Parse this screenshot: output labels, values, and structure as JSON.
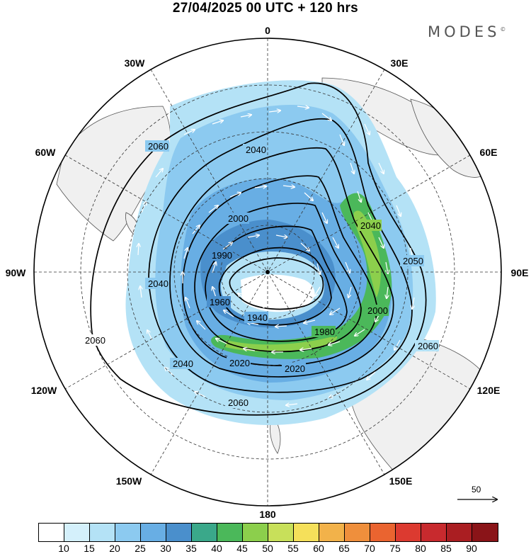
{
  "title": "27/04/2025  00 UTC  + 120 hrs",
  "brand": "MODES",
  "brand_mark": "©",
  "longitude_labels": {
    "n0": "0",
    "n30e": "30E",
    "n60e": "60E",
    "n90e": "90E",
    "n120e": "120E",
    "n150e": "150E",
    "n180": "180",
    "n150w": "150W",
    "n120w": "120W",
    "n90w": "90W",
    "n60w": "60W",
    "n30w": "30W"
  },
  "contour_labels": {
    "c2060_nw": "2060",
    "c2040_n": "2040",
    "c2000": "2000",
    "c1990": "1990",
    "c2040_w": "2040",
    "c1960": "1960",
    "c1940": "1940",
    "c1980": "1980",
    "c2000_e": "2000",
    "c2040_e": "2040",
    "c2050": "2050",
    "c2060_e": "2060",
    "c2060_sw": "2060",
    "c2040_s": "2040",
    "c2020_s": "2020",
    "c2020_s2": "2020",
    "c2060_s": "2060"
  },
  "wind_reference": {
    "label": "50"
  },
  "legend": {
    "ticks": [
      "10",
      "15",
      "20",
      "25",
      "30",
      "35",
      "40",
      "45",
      "50",
      "55",
      "60",
      "65",
      "70",
      "75",
      "80",
      "85",
      "90"
    ],
    "colors": [
      "#ffffff",
      "#d4f0fb",
      "#b4e2f6",
      "#8ccaf0",
      "#68aee4",
      "#4a8fcc",
      "#3aa88a",
      "#4bb85a",
      "#8ccf4c",
      "#c8e05a",
      "#f5e05a",
      "#f2b24a",
      "#ef8f3c",
      "#ea6430",
      "#dc3a30",
      "#c82a2e",
      "#aa1e22",
      "#8a1418"
    ]
  },
  "colors": {
    "land": "#f0f0f0",
    "grid": "#333333"
  }
}
